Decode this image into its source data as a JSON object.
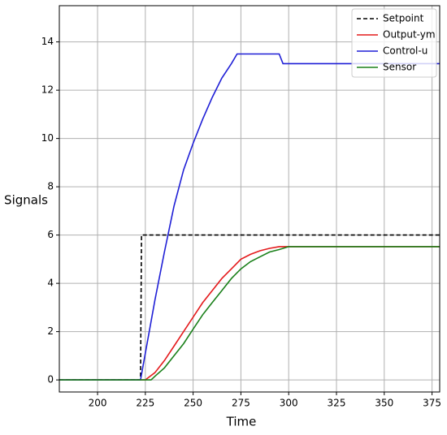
{
  "chart_data": {
    "type": "line",
    "xlabel": "Time",
    "ylabel": "Signals",
    "xlim": [
      180,
      379
    ],
    "ylim": [
      -0.5,
      15.5
    ],
    "xticks": [
      200,
      225,
      250,
      275,
      300,
      325,
      350,
      375
    ],
    "yticks": [
      0,
      2,
      4,
      6,
      8,
      10,
      12,
      14
    ],
    "grid": true,
    "legend": "upper right",
    "series": [
      {
        "name": "Setpoint",
        "color": "#000000",
        "dash": true,
        "x": [
          180,
          222.5,
          223,
          379
        ],
        "values": [
          0,
          0,
          6,
          6
        ]
      },
      {
        "name": "Output-ym",
        "color": "#e41a1c",
        "x": [
          180,
          225,
          230,
          235,
          240,
          245,
          250,
          255,
          260,
          265,
          270,
          275,
          280,
          285,
          290,
          295,
          300,
          379
        ],
        "values": [
          0,
          0,
          0.3,
          0.8,
          1.4,
          2.0,
          2.6,
          3.2,
          3.7,
          4.2,
          4.6,
          5.0,
          5.2,
          5.35,
          5.45,
          5.52,
          5.52,
          5.52
        ]
      },
      {
        "name": "Control-u",
        "color": "#1f1fd6",
        "x": [
          180,
          222.5,
          230,
          235,
          240,
          245,
          250,
          255,
          260,
          265,
          270,
          273,
          295,
          297,
          379
        ],
        "values": [
          0,
          0,
          3.3,
          5.3,
          7.2,
          8.7,
          9.8,
          10.8,
          11.7,
          12.5,
          13.1,
          13.5,
          13.5,
          13.1,
          13.1
        ]
      },
      {
        "name": "Sensor",
        "color": "#1a801a",
        "x": [
          180,
          228,
          230,
          235,
          240,
          245,
          250,
          255,
          260,
          265,
          270,
          275,
          280,
          285,
          290,
          295,
          300,
          303,
          379
        ],
        "values": [
          0,
          0,
          0.15,
          0.5,
          1.0,
          1.5,
          2.1,
          2.7,
          3.2,
          3.7,
          4.2,
          4.6,
          4.9,
          5.1,
          5.3,
          5.4,
          5.52,
          5.52,
          5.52
        ]
      }
    ]
  }
}
